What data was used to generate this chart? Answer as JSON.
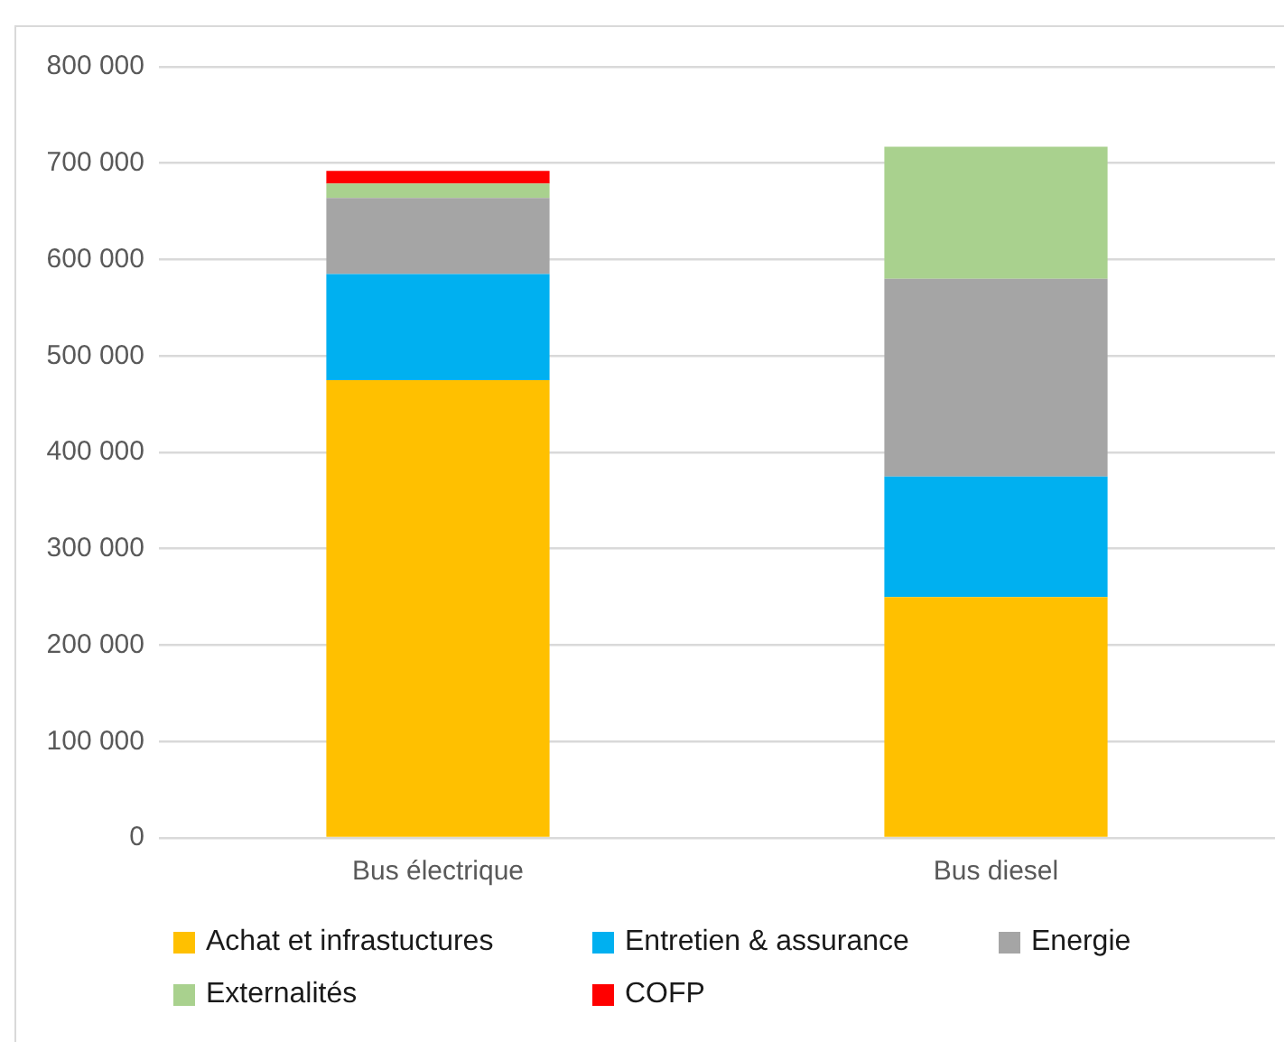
{
  "chart_data": {
    "type": "bar",
    "stacked": true,
    "categories": [
      "Bus électrique",
      "Bus diesel"
    ],
    "series": [
      {
        "name": "Achat et infrastuctures",
        "color": "#ffc000",
        "values": [
          475000,
          250000
        ]
      },
      {
        "name": "Entretien & assurance",
        "color": "#00b0f0",
        "values": [
          110000,
          125000
        ]
      },
      {
        "name": "Energie",
        "color": "#a5a5a5",
        "values": [
          79000,
          205000
        ]
      },
      {
        "name": "Externalités",
        "color": "#a9d18e",
        "values": [
          15000,
          137000
        ]
      },
      {
        "name": "COFP",
        "color": "#ff0000",
        "values": [
          13000,
          null
        ]
      }
    ],
    "ylim": [
      0,
      800000
    ],
    "yticks": [
      0,
      {
        "value": 100000,
        "label": "100 000"
      },
      {
        "value": 200000,
        "label": "200 000"
      },
      {
        "value": 300000,
        "label": "300 000"
      },
      {
        "value": 400000,
        "label": "400 000"
      },
      {
        "value": 500000,
        "label": "500 000"
      },
      {
        "value": 600000,
        "label": "600 000"
      },
      {
        "value": 700000,
        "label": "700 000"
      },
      {
        "value": 800000,
        "label": "800 000"
      }
    ],
    "grid": "y",
    "legend": "bottom"
  }
}
